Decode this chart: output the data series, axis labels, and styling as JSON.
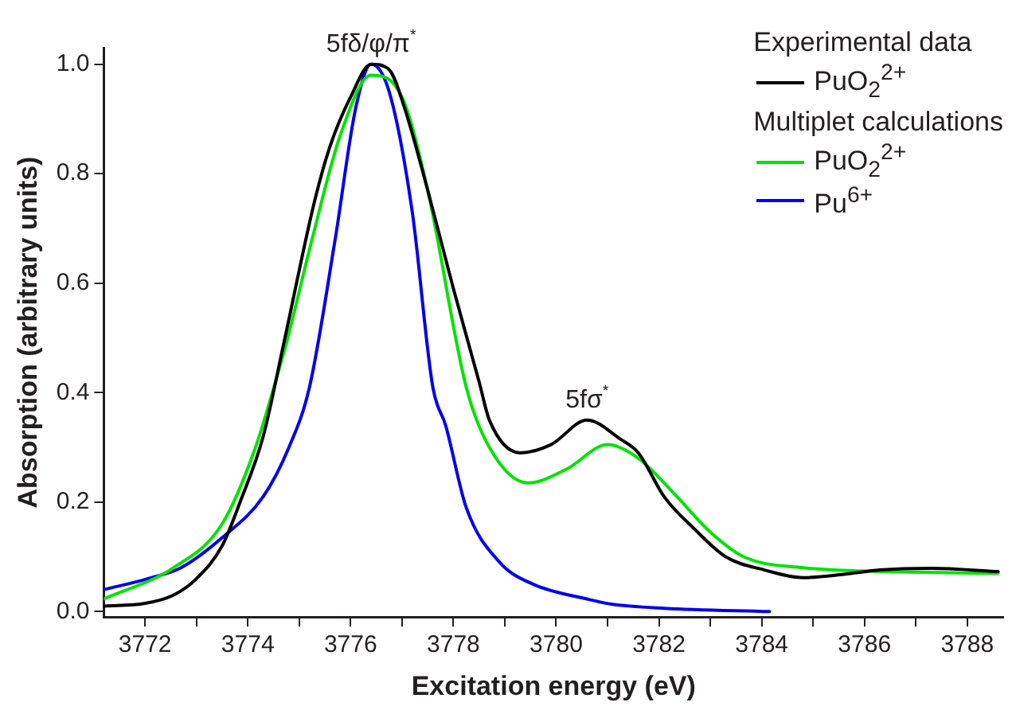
{
  "chart_data": {
    "type": "line",
    "xlabel": "Excitation energy (eV)",
    "ylabel": "Absorption (arbitrary units)",
    "xlim": [
      3771.2,
      3788.7
    ],
    "xticks": [
      3772,
      {
        "value": 3773,
        "label": null
      },
      3774,
      {
        "value": 3775,
        "label": null
      },
      3776,
      {
        "value": 3777,
        "label": null
      },
      3778,
      {
        "value": 3779,
        "label": null
      },
      3780,
      {
        "value": 3781,
        "label": null
      },
      3782,
      {
        "value": 3783,
        "label": null
      },
      3784,
      {
        "value": 3785,
        "label": null
      },
      3786,
      {
        "value": 3787,
        "label": null
      },
      3788
    ],
    "ylim": [
      -0.01,
      1.03
    ],
    "yticks": [
      {
        "value": 0,
        "label": "0.0"
      },
      {
        "value": 0.2,
        "label": "0.2"
      },
      {
        "value": 0.4,
        "label": "0.4"
      },
      {
        "value": 0.6,
        "label": "0.6"
      },
      {
        "value": 0.8,
        "label": "0.8"
      },
      {
        "value": 1,
        "label": "1.0"
      }
    ],
    "grid": false,
    "legend": "top right",
    "marker": "none",
    "line_style": "solid",
    "annotations": [
      {
        "text": "5fδ/φ/π$^{*}$",
        "x": 3776.4,
        "y": 1.0
      },
      {
        "text": "5fσ$^{*}$",
        "x": 3780.6,
        "y": 0.35
      },
      "Experimental data",
      "Multiplet calculations"
    ],
    "series": [
      {
        "name": "PuO$_{2}$$^{2+}$",
        "color": "#000000",
        "x": [
          3771.2,
          3772,
          3772.55,
          3773,
          3773.5,
          3773.85,
          3774.3,
          3774.7,
          3775.3,
          3775.6,
          3776,
          3776.4,
          3776.75,
          3777.05,
          3777.5,
          3778,
          3778.5,
          3778.7,
          3779.3,
          3779.9,
          3780.6,
          3781.25,
          3781.6,
          3782.1,
          3782.7,
          3783.3,
          3784.05,
          3784.8,
          3785.6,
          3786.3,
          3787.3,
          3788.6
        ],
        "values": [
          0.01,
          0.015,
          0.03,
          0.06,
          0.12,
          0.2,
          0.32,
          0.49,
          0.75,
          0.85,
          0.94,
          1.0,
          0.99,
          0.92,
          0.77,
          0.59,
          0.42,
          0.35,
          0.29,
          0.305,
          0.35,
          0.315,
          0.29,
          0.21,
          0.15,
          0.1,
          0.076,
          0.062,
          0.068,
          0.076,
          0.079,
          0.073
        ]
      },
      {
        "name": "PuO$_{2}$$^{2+}$",
        "color": "#00e400",
        "x": [
          3771.2,
          3772.55,
          3773.5,
          3774.15,
          3774.6,
          3774.75,
          3775.25,
          3775.8,
          3776.4,
          3777,
          3777.5,
          3778.25,
          3778.7,
          3779.45,
          3780.2,
          3781,
          3781.6,
          3782.35,
          3783,
          3783.65,
          3784.8,
          3786.4,
          3788.6
        ],
        "values": [
          0.023,
          0.08,
          0.16,
          0.3,
          0.44,
          0.49,
          0.68,
          0.87,
          0.98,
          0.94,
          0.77,
          0.41,
          0.3,
          0.235,
          0.26,
          0.305,
          0.28,
          0.21,
          0.145,
          0.1,
          0.08,
          0.073,
          0.07
        ]
      },
      {
        "name": "Pu$^{6+}$",
        "color": "#0000ee",
        "x": [
          3771.2,
          3772.05,
          3772.7,
          3773.5,
          3774.3,
          3774.8,
          3775.2,
          3775.7,
          3776.1,
          3776.4,
          3776.75,
          3777.2,
          3777.6,
          3777.85,
          3778.25,
          3778.9,
          3779.55,
          3780.6,
          3781.05,
          3782.1,
          3784.15
        ],
        "values": [
          0.04,
          0.06,
          0.08,
          0.135,
          0.21,
          0.3,
          0.41,
          0.68,
          0.92,
          1.0,
          0.95,
          0.73,
          0.41,
          0.34,
          0.19,
          0.09,
          0.05,
          0.023,
          0.014,
          0.006,
          0
        ]
      }
    ]
  }
}
